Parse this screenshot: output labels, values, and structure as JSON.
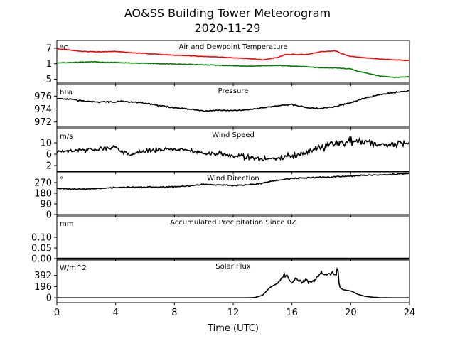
{
  "title": "AO&SS Building Tower Meteorogram",
  "subtitle": "2020-11-29",
  "xlabel": "Time (UTC)",
  "x_ticks": [
    0,
    4,
    8,
    12,
    16,
    20,
    24
  ],
  "xlim": [
    0,
    24
  ],
  "chart_data": [
    {
      "type": "line",
      "title": "Air and Dewpoint Temperature",
      "unit": "°C",
      "ylim": [
        -6.5,
        10
      ],
      "yticks": [
        7,
        1,
        -5
      ],
      "series": [
        {
          "color": "#ff0000",
          "x": [
            0,
            1,
            2,
            3,
            4,
            5,
            6,
            7,
            8,
            9,
            10,
            11,
            12,
            13,
            14,
            15,
            15.5,
            16,
            17,
            18,
            19,
            19.3,
            20,
            21,
            22,
            23,
            24
          ],
          "y": [
            6.8,
            6.2,
            5.7,
            5.6,
            5.8,
            5.3,
            5.0,
            4.6,
            4.3,
            4.1,
            3.8,
            3.6,
            3.3,
            3.0,
            2.5,
            3.4,
            4.5,
            4.6,
            4.6,
            5.7,
            6.0,
            5.0,
            3.8,
            3.3,
            2.8,
            2.5,
            2.2
          ]
        },
        {
          "color": "#008000",
          "x": [
            0,
            1,
            2,
            2.5,
            3,
            4,
            5,
            6,
            7,
            8,
            9,
            10,
            11,
            12,
            13,
            14,
            15,
            16,
            17,
            18,
            19,
            20,
            20.5,
            21,
            22,
            23,
            24
          ],
          "y": [
            1.3,
            1.5,
            1.7,
            1.8,
            1.6,
            1.5,
            1.3,
            1.2,
            1.0,
            0.9,
            0.8,
            0.6,
            0.4,
            0.2,
            0.0,
            0.2,
            0.3,
            0.1,
            -0.1,
            -0.6,
            -0.6,
            -1.0,
            -2.0,
            -2.5,
            -3.8,
            -4.3,
            -4.0
          ]
        }
      ]
    },
    {
      "type": "line",
      "title": "Pressure",
      "unit": "hPa",
      "ylim": [
        971.2,
        977.8
      ],
      "yticks": [
        976,
        974,
        972
      ],
      "series": [
        {
          "color": "#000000",
          "x": [
            0,
            1,
            2,
            3,
            4,
            4.5,
            5,
            6,
            7,
            8,
            9,
            10,
            11,
            12,
            13,
            14,
            15,
            16,
            17,
            18,
            19,
            20,
            21,
            22,
            23,
            24
          ],
          "y": [
            975.6,
            975.5,
            975.2,
            975.1,
            975.1,
            975.2,
            975.1,
            974.9,
            974.5,
            974.2,
            974.0,
            973.7,
            973.8,
            973.8,
            973.9,
            974.2,
            974.5,
            974.7,
            974.2,
            974.1,
            974.4,
            975.0,
            975.7,
            976.2,
            976.6,
            976.8
          ]
        }
      ]
    },
    {
      "type": "line",
      "title": "Wind Speed",
      "unit": "m/s",
      "ylim": [
        0,
        15
      ],
      "yticks": [
        10,
        6,
        2
      ],
      "series": [
        {
          "color": "#000000",
          "x": [
            0,
            1,
            2,
            3,
            4,
            4.5,
            5,
            6,
            7,
            8,
            9,
            10,
            11,
            12,
            13,
            14,
            15,
            16,
            17,
            18,
            19,
            20,
            21,
            22,
            23,
            24
          ],
          "y": [
            6.8,
            7.3,
            7.5,
            8.0,
            8.4,
            6.8,
            5.8,
            7.3,
            7.5,
            7.6,
            7.6,
            6.2,
            6.2,
            5.5,
            4.8,
            4.0,
            4.5,
            5.5,
            6.5,
            8.5,
            9.5,
            10.5,
            10.2,
            9.8,
            9.3,
            9.8
          ]
        }
      ]
    },
    {
      "type": "line",
      "title": "Wind Direction",
      "unit": "°",
      "ylim": [
        0,
        360
      ],
      "yticks": [
        270,
        180,
        90,
        0
      ],
      "series": [
        {
          "color": "#000000",
          "x": [
            0,
            1,
            2,
            3,
            4,
            5,
            6,
            7,
            8,
            9,
            10,
            11,
            12,
            13,
            14,
            15,
            16,
            17,
            18,
            19,
            20,
            21,
            22,
            23,
            24
          ],
          "y": [
            220,
            215,
            215,
            220,
            228,
            232,
            232,
            232,
            235,
            242,
            255,
            250,
            245,
            250,
            265,
            290,
            305,
            310,
            315,
            320,
            325,
            332,
            335,
            340,
            345
          ]
        }
      ]
    },
    {
      "type": "line",
      "title": "Accumulated Precipitation Since 0Z",
      "unit": "mm",
      "ylim": [
        0,
        0.2
      ],
      "yticks": [
        "0.10",
        "0.05",
        "0.00"
      ],
      "series": [
        {
          "color": "#000000",
          "x": [
            0,
            24
          ],
          "y": [
            0,
            0
          ]
        }
      ]
    },
    {
      "type": "line",
      "title": "Solar Flux",
      "unit": "W/m^2",
      "ylim": [
        -85,
        660
      ],
      "yticks": [
        392,
        196,
        0
      ],
      "series": [
        {
          "color": "#000000",
          "x": [
            0,
            13,
            13.5,
            14,
            14.5,
            15,
            15.5,
            15.8,
            16,
            16.3,
            16.7,
            17,
            17.3,
            17.6,
            18,
            18.5,
            18.8,
            19,
            19.1,
            19.2,
            19.3,
            19.5,
            20,
            20.5,
            21,
            21.5,
            22,
            22.5,
            23,
            24
          ],
          "y": [
            0,
            0,
            5,
            45,
            180,
            250,
            400,
            350,
            240,
            350,
            260,
            320,
            250,
            340,
            440,
            400,
            430,
            380,
            560,
            300,
            170,
            140,
            120,
            60,
            25,
            10,
            2,
            0,
            0,
            0
          ]
        }
      ]
    }
  ]
}
